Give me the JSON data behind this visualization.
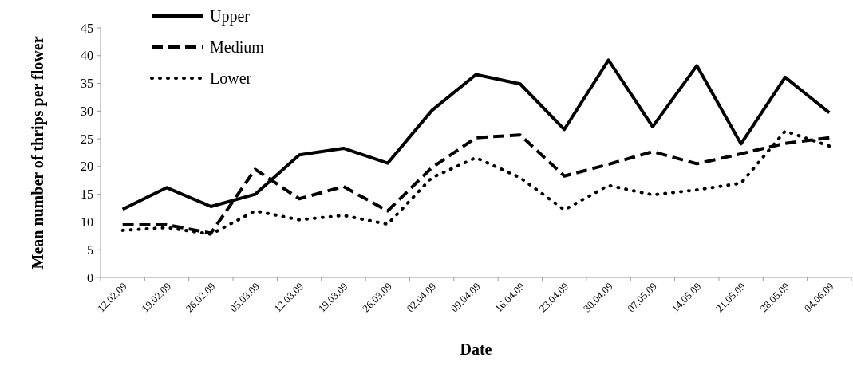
{
  "chart_data": {
    "type": "line",
    "xlabel": "Date",
    "ylabel": "Mean  number of thrips per flower",
    "categories": [
      "12.02.09",
      "19.02.09",
      "26.02.09",
      "05.03.09",
      "12.03.09",
      "19.03.09",
      "26.03.09",
      "02.04.09",
      "09.04.09",
      "16.04.09",
      "23.04.09",
      "30.04.09",
      "07.05.09",
      "14.05.09",
      "21.05.09",
      "28.05.09",
      "04.06.09"
    ],
    "series": [
      {
        "name": "Upper",
        "color": "#000000",
        "line_style": "solid",
        "values": [
          12.3,
          16.2,
          12.8,
          15,
          22.1,
          23.3,
          20.6,
          30.1,
          36.6,
          34.9,
          26.7,
          39.2,
          27.2,
          38.2,
          24.1,
          36.1,
          29.7
        ]
      },
      {
        "name": "Medium",
        "color": "#000000",
        "line_style": "dashed",
        "values": [
          9.5,
          9.5,
          8,
          19.5,
          14.2,
          16.4,
          12,
          19.8,
          25.2,
          25.7,
          18.3,
          20.4,
          22.7,
          20.5,
          22.3,
          24.2,
          25.2
        ]
      },
      {
        "name": "Lower",
        "color": "#000000",
        "line_style": "dotted",
        "values": [
          8.5,
          9,
          7.8,
          12,
          10.4,
          11.2,
          9.6,
          18,
          21.6,
          18,
          12.2,
          16.6,
          14.9,
          15.8,
          17,
          26.4,
          23.7
        ]
      }
    ],
    "ylim": [
      0,
      45
    ],
    "yticks": [
      0,
      5,
      10,
      15,
      20,
      25,
      30,
      35,
      40,
      45
    ],
    "grid": false,
    "legend": "top left"
  }
}
